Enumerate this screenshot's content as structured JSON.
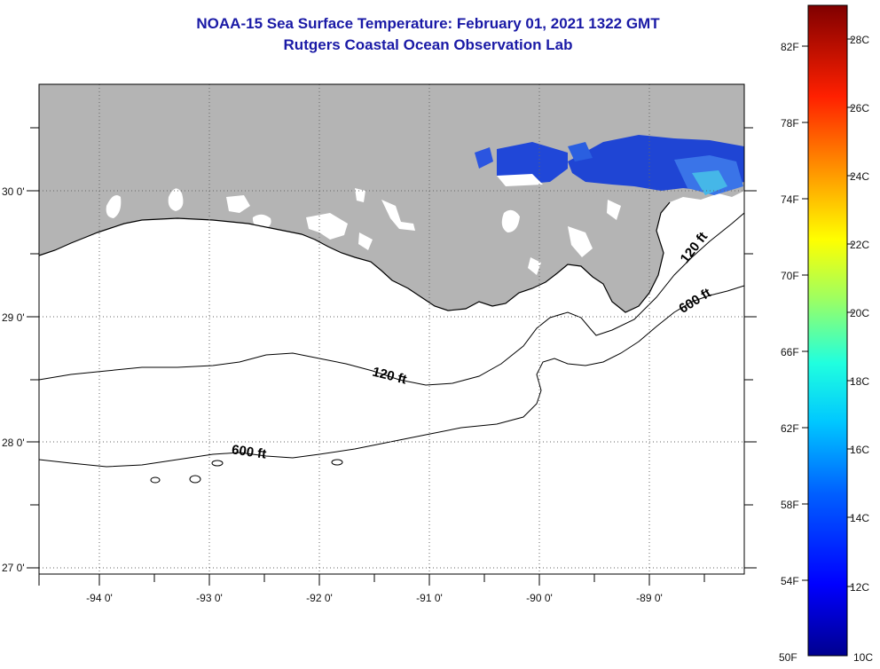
{
  "header": {
    "title": "NOAA-15 Sea Surface Temperature:  February 01, 2021 1322 GMT",
    "subtitle": "Rutgers Coastal Ocean Observation Lab"
  },
  "map": {
    "lon_labels": [
      "-94 0'",
      "-93 0'",
      "-92 0'",
      "-91 0'",
      "-90 0'",
      "-89 0'"
    ],
    "lat_labels": [
      "30 0'",
      "29 0'",
      "28 0'",
      "27 0'"
    ],
    "contour_labels": {
      "shelf_120_a": "120 ft",
      "shelf_120_b": "120 ft",
      "shelf_600_a": "600 ft",
      "shelf_600_b": "600 ft"
    },
    "colors": {
      "land": "#b4b4b4",
      "ocean": "#ffffff",
      "grid": "#555555",
      "sst_cold": "#1a3fd6"
    }
  },
  "colorbar": {
    "fahrenheit_labels": [
      "82F",
      "78F",
      "74F",
      "70F",
      "66F",
      "62F",
      "58F",
      "54F",
      "50F"
    ],
    "celsius_labels": [
      "28C",
      "26C",
      "24C",
      "22C",
      "20C",
      "18C",
      "16C",
      "14C",
      "12C",
      "10C"
    ],
    "range_c": [
      10,
      29
    ],
    "colormap": "jet"
  }
}
